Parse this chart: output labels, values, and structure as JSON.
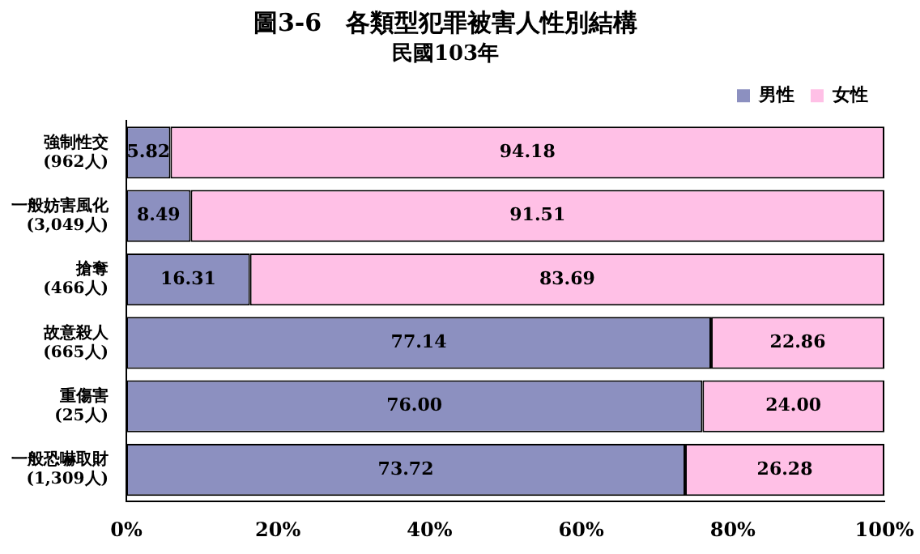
{
  "chart_data": {
    "type": "bar",
    "orientation": "horizontal",
    "stacked": true,
    "title": "圖3-6　各類型犯罪被害人性別結構",
    "subtitle": "民國103年",
    "categories": [
      "強制性交\n(962人)",
      "一般妨害風化\n(3,049人)",
      "搶奪\n(466人)",
      "故意殺人\n(665人)",
      "重傷害\n(25人)",
      "一般恐嚇取財\n(1,309人)"
    ],
    "series": [
      {
        "name": "男性",
        "color": "#8c90c0",
        "values": [
          5.82,
          8.49,
          16.31,
          77.14,
          76.0,
          73.72
        ],
        "value_labels": [
          "5.82",
          "8.49",
          "16.31",
          "77.14",
          "76.00",
          "73.72"
        ]
      },
      {
        "name": "女性",
        "color": "#ffc0e6",
        "values": [
          94.18,
          91.51,
          83.69,
          22.86,
          24.0,
          26.28
        ],
        "value_labels": [
          "94.18",
          "91.51",
          "83.69",
          "22.86",
          "24.00",
          "26.28"
        ]
      }
    ],
    "xlim": [
      0,
      100
    ],
    "xticks": [
      {
        "value": 0,
        "label": "0%"
      },
      {
        "value": 20,
        "label": "20%"
      },
      {
        "value": 40,
        "label": "40%"
      },
      {
        "value": 60,
        "label": "60%"
      },
      {
        "value": 80,
        "label": "80%"
      },
      {
        "value": 100,
        "label": "100%"
      }
    ],
    "grid": false,
    "legend": "top right"
  }
}
